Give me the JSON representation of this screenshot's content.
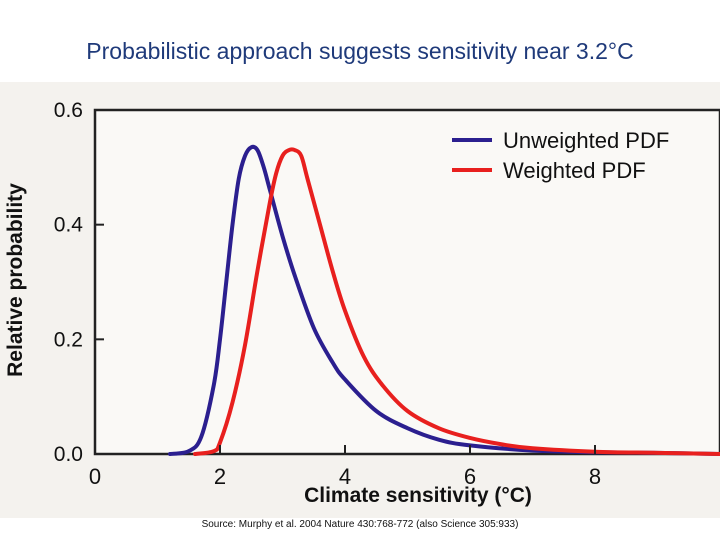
{
  "slide": {
    "title": "Probabilistic approach suggests sensitivity near 3.2°C",
    "source": "Source: Murphy et al. 2004 Nature 430:768-772 (also Science 305:933)"
  },
  "chart_data": {
    "type": "line",
    "title": "",
    "xlabel": "Climate sensitivity (°C)",
    "ylabel": "Relative probability",
    "xlim": [
      0,
      10
    ],
    "ylim": [
      0,
      0.6
    ],
    "xticks": [
      0,
      2,
      4,
      6,
      8
    ],
    "xtick_labels": [
      "0",
      "2",
      "4",
      "6",
      "8"
    ],
    "yticks": [
      0.0,
      0.2,
      0.4,
      0.6
    ],
    "ytick_labels": [
      "0.0",
      "0.2",
      "0.4",
      "0.6"
    ],
    "legend_position": "top-right",
    "series": [
      {
        "name": "Unweighted PDF",
        "color": "#2b1f8f",
        "x": [
          1.2,
          1.5,
          1.7,
          1.9,
          2.0,
          2.1,
          2.2,
          2.3,
          2.4,
          2.5,
          2.6,
          2.7,
          2.8,
          3.0,
          3.2,
          3.5,
          3.8,
          4.0,
          4.5,
          5.0,
          5.5,
          6.0,
          7.0,
          8.0,
          9.0,
          10.0
        ],
        "y": [
          0.0,
          0.005,
          0.03,
          0.12,
          0.2,
          0.3,
          0.4,
          0.48,
          0.52,
          0.535,
          0.53,
          0.5,
          0.46,
          0.38,
          0.31,
          0.22,
          0.16,
          0.13,
          0.075,
          0.045,
          0.025,
          0.015,
          0.006,
          0.003,
          0.002,
          0.0
        ]
      },
      {
        "name": "Weighted PDF",
        "color": "#e8201e",
        "x": [
          1.6,
          1.9,
          2.0,
          2.2,
          2.4,
          2.6,
          2.8,
          2.9,
          3.0,
          3.1,
          3.2,
          3.3,
          3.4,
          3.6,
          3.8,
          4.0,
          4.3,
          4.6,
          5.0,
          5.5,
          6.0,
          6.5,
          7.0,
          8.0,
          9.0,
          10.0
        ],
        "y": [
          0.0,
          0.005,
          0.02,
          0.09,
          0.19,
          0.32,
          0.44,
          0.49,
          0.52,
          0.53,
          0.53,
          0.52,
          0.48,
          0.4,
          0.32,
          0.25,
          0.17,
          0.12,
          0.075,
          0.045,
          0.028,
          0.017,
          0.01,
          0.004,
          0.002,
          0.0
        ]
      }
    ]
  }
}
